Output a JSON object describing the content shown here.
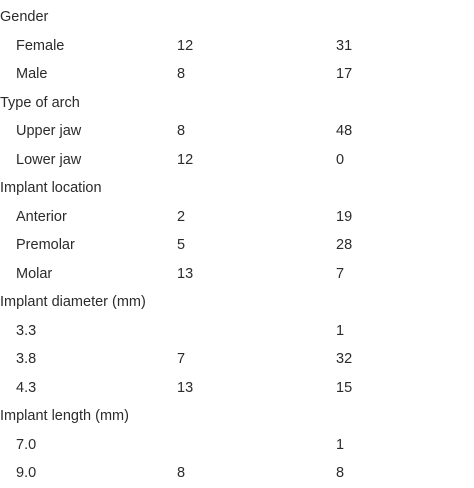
{
  "rows": [
    {
      "label": "Gender",
      "a": "",
      "b": "",
      "sub": false
    },
    {
      "label": "Female",
      "a": "12",
      "b": "31",
      "sub": true
    },
    {
      "label": "Male",
      "a": "8",
      "b": "17",
      "sub": true
    },
    {
      "label": "Type of arch",
      "a": "",
      "b": "",
      "sub": false
    },
    {
      "label": "Upper jaw",
      "a": "8",
      "b": "48",
      "sub": true
    },
    {
      "label": "Lower jaw",
      "a": "12",
      "b": "0",
      "sub": true
    },
    {
      "label": "Implant location",
      "a": "",
      "b": "",
      "sub": false
    },
    {
      "label": "Anterior",
      "a": "2",
      "b": "19",
      "sub": true
    },
    {
      "label": "Premolar",
      "a": "5",
      "b": "28",
      "sub": true
    },
    {
      "label": "Molar",
      "a": "13",
      "b": "7",
      "sub": true
    },
    {
      "label": "Implant diameter (mm)",
      "a": "",
      "b": "",
      "sub": false
    },
    {
      "label": "3.3",
      "a": "",
      "b": "1",
      "sub": true
    },
    {
      "label": "3.8",
      "a": "7",
      "b": "32",
      "sub": true
    },
    {
      "label": "4.3",
      "a": "13",
      "b": "15",
      "sub": true
    },
    {
      "label": "Implant length (mm)",
      "a": "",
      "b": "",
      "sub": false
    },
    {
      "label": "7.0",
      "a": "",
      "b": "1",
      "sub": true
    },
    {
      "label": "9.0",
      "a": "8",
      "b": "8",
      "sub": true
    }
  ]
}
